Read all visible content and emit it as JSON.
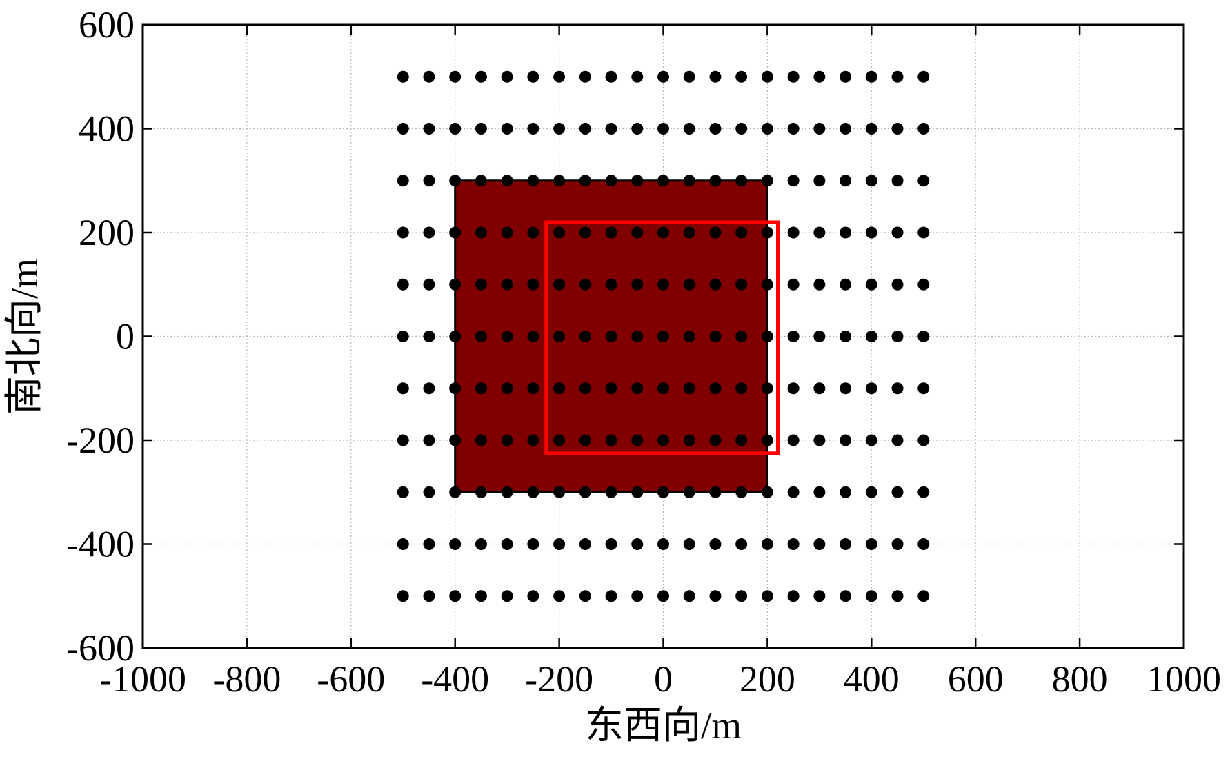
{
  "chart_data": {
    "type": "scatter",
    "title": "",
    "xlabel": "东西向/m",
    "ylabel": "南北向/m",
    "xlim": [
      -1000,
      1000
    ],
    "ylim": [
      -600,
      600
    ],
    "xticks": [
      -1000,
      -800,
      -600,
      -400,
      -200,
      0,
      200,
      400,
      600,
      800,
      1000
    ],
    "yticks": [
      -600,
      -400,
      -200,
      0,
      200,
      400,
      600
    ],
    "xtick_labels": [
      "-1000",
      "-800",
      "-600",
      "-400",
      "-200",
      "0",
      "200",
      "400",
      "600",
      "800",
      "1000"
    ],
    "ytick_labels": [
      "-600",
      "-400",
      "-200",
      "0",
      "200",
      "400",
      "600"
    ],
    "grid": true,
    "points": {
      "x_start": -500,
      "x_end": 500,
      "x_step": 50,
      "y_start": -500,
      "y_end": 500,
      "y_step": 100,
      "color": "#000000"
    },
    "filled_rectangle": {
      "x": [
        -400,
        200
      ],
      "y": [
        -300,
        300
      ],
      "fill": "#800000",
      "stroke": "#000000"
    },
    "outline_rectangle": {
      "x": [
        -225,
        220
      ],
      "y": [
        -225,
        220
      ],
      "stroke": "#ff0000"
    }
  }
}
